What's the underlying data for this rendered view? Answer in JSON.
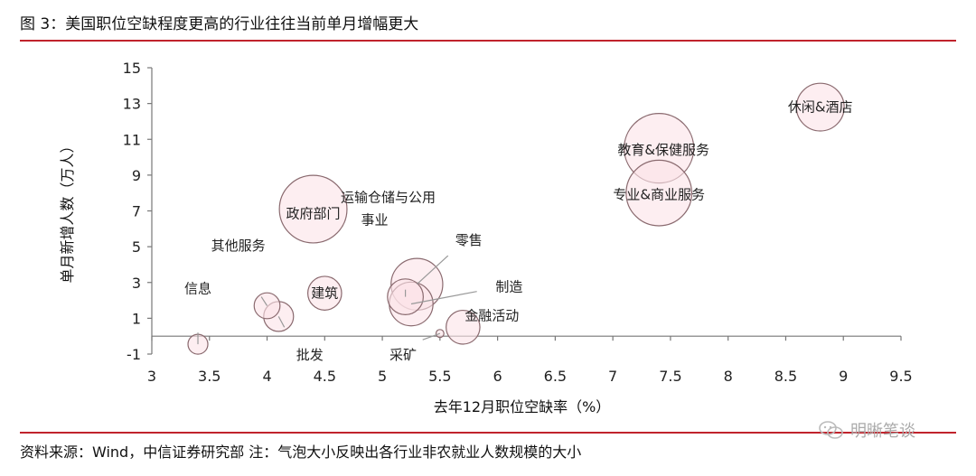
{
  "figure": {
    "title": "图 3：美国职位空缺程度更高的行业往往当前单月增幅更大",
    "source": "资料来源：Wind，中信证券研究部  注：气泡大小反映出各行业非农就业人数规模的大小",
    "watermark": "明晰笔谈"
  },
  "chart_data": {
    "type": "bubble",
    "xlabel": "去年12月职位空缺率（%）",
    "ylabel": "单月新增人数（万人）",
    "xlim": [
      3,
      9.5
    ],
    "ylim": [
      -1,
      15
    ],
    "xticks": [
      "3",
      "3.5",
      "4",
      "4.5",
      "5",
      "5.5",
      "6",
      "6.5",
      "7",
      "7.5",
      "8",
      "8.5",
      "9",
      "9.5"
    ],
    "yticks": [
      "-1",
      "1",
      "3",
      "5",
      "7",
      "9",
      "11",
      "13",
      "15"
    ],
    "grid": false,
    "series": [
      {
        "label": "休闲&酒店",
        "x": 8.8,
        "y": 12.8,
        "size": 1.2
      },
      {
        "label": "教育&保健服务",
        "x": 7.4,
        "y": 10.5,
        "size": 1.75
      },
      {
        "label": "专业&商业服务",
        "x": 7.4,
        "y": 8.0,
        "size": 1.65
      },
      {
        "label": "政府部门",
        "x": 4.4,
        "y": 7.1,
        "size": 1.7
      },
      {
        "label": "零售",
        "x": 5.3,
        "y": 2.9,
        "size": 1.3
      },
      {
        "label": "运输仓储与公用事业",
        "x": 5.2,
        "y": 2.2,
        "size": 0.9
      },
      {
        "label": "制造",
        "x": 5.25,
        "y": 1.8,
        "size": 1.1
      },
      {
        "label": "金融活动",
        "x": 5.7,
        "y": 0.5,
        "size": 0.85
      },
      {
        "label": "采矿",
        "x": 5.5,
        "y": 0.15,
        "size": 0.2
      },
      {
        "label": "建筑",
        "x": 4.5,
        "y": 2.4,
        "size": 0.85
      },
      {
        "label": "其他服务",
        "x": 4.0,
        "y": 1.7,
        "size": 0.65
      },
      {
        "label": "批发",
        "x": 4.1,
        "y": 1.1,
        "size": 0.75
      },
      {
        "label": "信息",
        "x": 3.4,
        "y": -0.45,
        "size": 0.5
      }
    ]
  }
}
